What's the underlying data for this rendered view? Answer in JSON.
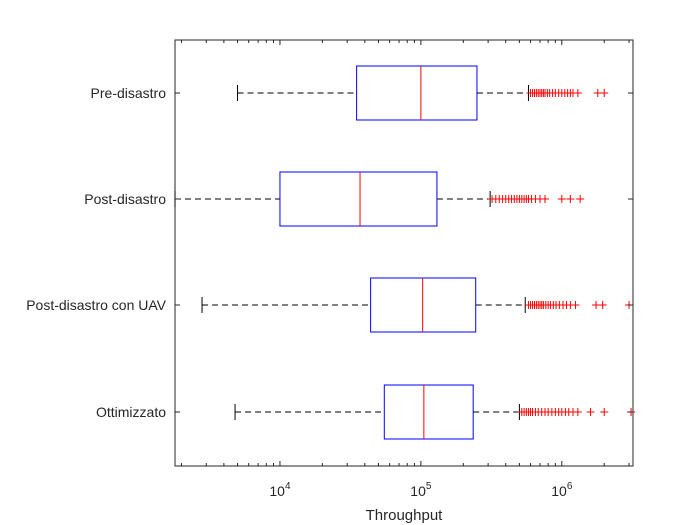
{
  "chart_data": {
    "type": "boxplot",
    "orientation": "horizontal",
    "xscale": "log",
    "xlim": [
      1800,
      3200000
    ],
    "xlabel": "Throughput",
    "xticks": [
      {
        "value": 10000,
        "base": "10",
        "exp": "4"
      },
      {
        "value": 100000,
        "base": "10",
        "exp": "5"
      },
      {
        "value": 1000000,
        "base": "10",
        "exp": "6"
      }
    ],
    "grid": false,
    "colors": {
      "box": "#0000ff",
      "median": "#ff0000",
      "whisker": "#000000",
      "outlier": "#ff0000",
      "axis": "#262626"
    },
    "categories": [
      "Pre-disastro",
      "Post-disastro",
      "Post-disastro con UAV",
      "Ottimizzato"
    ],
    "boxes": [
      {
        "name": "Pre-disastro",
        "whisker_low": 5000,
        "q1": 35000,
        "median": 100000,
        "q3": 250000,
        "whisker_high": 580000,
        "outliers": [
          600000,
          620000,
          640000,
          660000,
          680000,
          700000,
          720000,
          740000,
          760000,
          790000,
          820000,
          860000,
          900000,
          950000,
          1000000,
          1050000,
          1100000,
          1150000,
          1200000,
          1300000,
          1800000,
          2000000
        ]
      },
      {
        "name": "Post-disastro",
        "whisker_low": 1800,
        "q1": 10000,
        "median": 37000,
        "q3": 130000,
        "whisker_high": 310000,
        "outliers": [
          320000,
          340000,
          360000,
          380000,
          400000,
          420000,
          440000,
          460000,
          480000,
          500000,
          520000,
          540000,
          560000,
          580000,
          610000,
          650000,
          700000,
          760000,
          1000000,
          1150000,
          1350000
        ]
      },
      {
        "name": "Post-disastro con UAV",
        "whisker_low": 2800,
        "q1": 44000,
        "median": 103000,
        "q3": 245000,
        "whisker_high": 550000,
        "outliers": [
          580000,
          600000,
          620000,
          640000,
          660000,
          680000,
          700000,
          720000,
          740000,
          770000,
          800000,
          830000,
          870000,
          910000,
          960000,
          1020000,
          1080000,
          1150000,
          1250000,
          1750000,
          1950000,
          3000000
        ]
      },
      {
        "name": "Ottimizzato",
        "whisker_low": 4800,
        "q1": 55000,
        "median": 105000,
        "q3": 235000,
        "whisker_high": 500000,
        "outliers": [
          520000,
          540000,
          560000,
          580000,
          600000,
          620000,
          650000,
          680000,
          720000,
          760000,
          800000,
          850000,
          900000,
          950000,
          1000000,
          1060000,
          1120000,
          1200000,
          1300000,
          1600000,
          2000000,
          3100000
        ]
      }
    ]
  }
}
